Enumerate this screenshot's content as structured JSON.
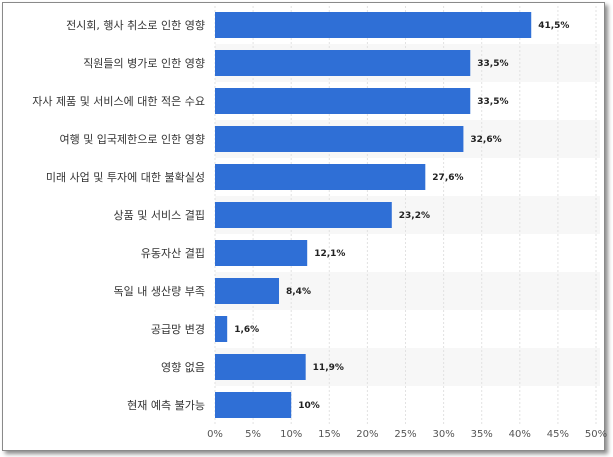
{
  "chart_data": {
    "type": "bar",
    "orientation": "horizontal",
    "categories": [
      "전시회, 행사 취소로 인한 영향",
      "직원들의 병가로 인한 영향",
      "자사 제품 및 서비스에 대한 적은 수요",
      "여행 및 입국제한으로 인한 영향",
      "미래 사업 및 투자에 대한 불확실성",
      "상품 및 서비스 결핍",
      "유동자산 결핍",
      "독일 내 생산량 부족",
      "공급망 변경",
      "영향 없음",
      "현재 예측 불가능"
    ],
    "values": [
      41.5,
      33.5,
      33.5,
      32.6,
      27.6,
      23.2,
      12.1,
      8.4,
      1.6,
      11.9,
      10
    ],
    "value_labels": [
      "41,5%",
      "33,5%",
      "33,5%",
      "32,6%",
      "27,6%",
      "23,2%",
      "12,1%",
      "8,4%",
      "1,6%",
      "11,9%",
      "10%"
    ],
    "xticks": [
      "0%",
      "5%",
      "10%",
      "15%",
      "20%",
      "25%",
      "30%",
      "35%",
      "40%",
      "45%",
      "50%"
    ],
    "xlim": [
      0,
      50
    ],
    "grid": true,
    "title": "",
    "xlabel": "",
    "ylabel": "",
    "colors": {
      "bar": "#2f6fd6",
      "stripe": "#f7f7f7",
      "grid": "#e2e2e2"
    }
  }
}
